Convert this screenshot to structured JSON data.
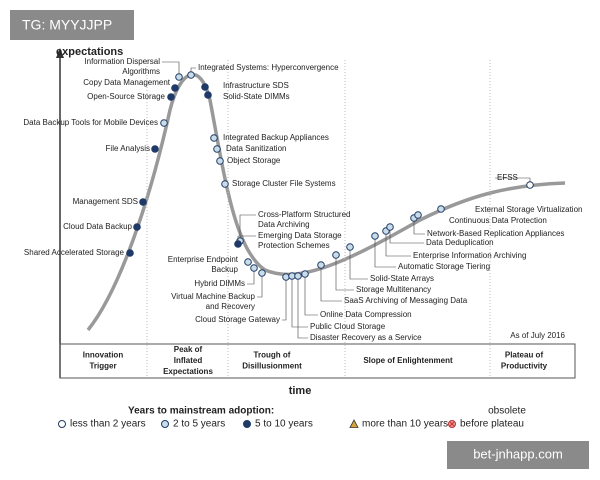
{
  "watermark_top": "TG: MYYJJPP",
  "y_axis_label": "expectations",
  "x_axis_label": "time",
  "as_of": "As of July 2016",
  "nodes": [
    {
      "label": [
        "Shared Accelerated Storage"
      ]
    },
    {
      "label": [
        "Cloud Data Backup"
      ]
    },
    {
      "label": [
        "Management SDS"
      ]
    },
    {
      "label": [
        "File Analysis"
      ]
    },
    {
      "label": [
        "Data Backup Tools for Mobile Devices"
      ]
    },
    {
      "label": [
        "Open-Source Storage"
      ]
    },
    {
      "label": [
        "Copy Data Management"
      ]
    },
    {
      "label": [
        "Information Dispersal",
        "Algorithms"
      ]
    },
    {
      "label": [
        "Integrated Systems: Hyperconvergence"
      ]
    },
    {
      "label": [
        "Infrastructure SDS"
      ]
    },
    {
      "label": [
        "Solid-State DIMMs"
      ]
    },
    {
      "label": [
        "Integrated Backup Appliances"
      ]
    },
    {
      "label": [
        "Data Sanitization"
      ]
    },
    {
      "label": [
        "Object Storage"
      ]
    },
    {
      "label": [
        "Storage Cluster File Systems"
      ]
    },
    {
      "label": [
        "Cross-Platform Structured",
        "Data Archiving"
      ]
    },
    {
      "label": [
        "Emerging Data Storage",
        "Protection Schemes"
      ]
    },
    {
      "label": [
        "Enterprise Endpoint",
        "Backup"
      ]
    },
    {
      "label": [
        "Hybrid DIMMs"
      ]
    },
    {
      "label": [
        "Virtual Machine Backup",
        "and Recovery"
      ]
    },
    {
      "label": [
        "Cloud Storage Gateway"
      ]
    },
    {
      "label": [
        "Public Cloud Storage"
      ]
    },
    {
      "label": [
        "Disaster Recovery as a Service"
      ]
    },
    {
      "label": [
        "Online Data Compression"
      ]
    },
    {
      "label": [
        "SaaS Archiving of Messaging Data"
      ]
    },
    {
      "label": [
        "Storage Multitenancy"
      ]
    },
    {
      "label": [
        "Solid-State Arrays"
      ]
    },
    {
      "label": [
        "Automatic Storage Tiering"
      ]
    },
    {
      "label": [
        "Enterprise Information Archiving"
      ]
    },
    {
      "label": [
        "Data Deduplication"
      ]
    },
    {
      "label": [
        "Network-Based Replication Appliances"
      ]
    },
    {
      "label": [
        "Continuous Data Protection"
      ]
    },
    {
      "label": [
        "External Storage Virtualization"
      ]
    },
    {
      "label": [
        "EFSS"
      ]
    }
  ],
  "phases": [
    {
      "label": [
        "Innovation",
        "Trigger"
      ]
    },
    {
      "label": [
        "Peak of",
        "Inflated",
        "Expectations"
      ]
    },
    {
      "label": [
        "Trough of",
        "Disillusionment"
      ]
    },
    {
      "label": [
        "Slope of Enlightenment"
      ]
    },
    {
      "label": [
        "Plateau of",
        "Productivity"
      ]
    }
  ],
  "legend": {
    "title": "Years to mainstream adoption:",
    "items": [
      [
        "less than 2 years"
      ],
      [
        "2 to 5 years"
      ],
      [
        "5 to 10 years"
      ],
      [
        "more than 10 years"
      ],
      [
        "obsolete",
        "before plateau"
      ]
    ]
  },
  "watermark_bottom": "bet-jnhapp.com"
}
